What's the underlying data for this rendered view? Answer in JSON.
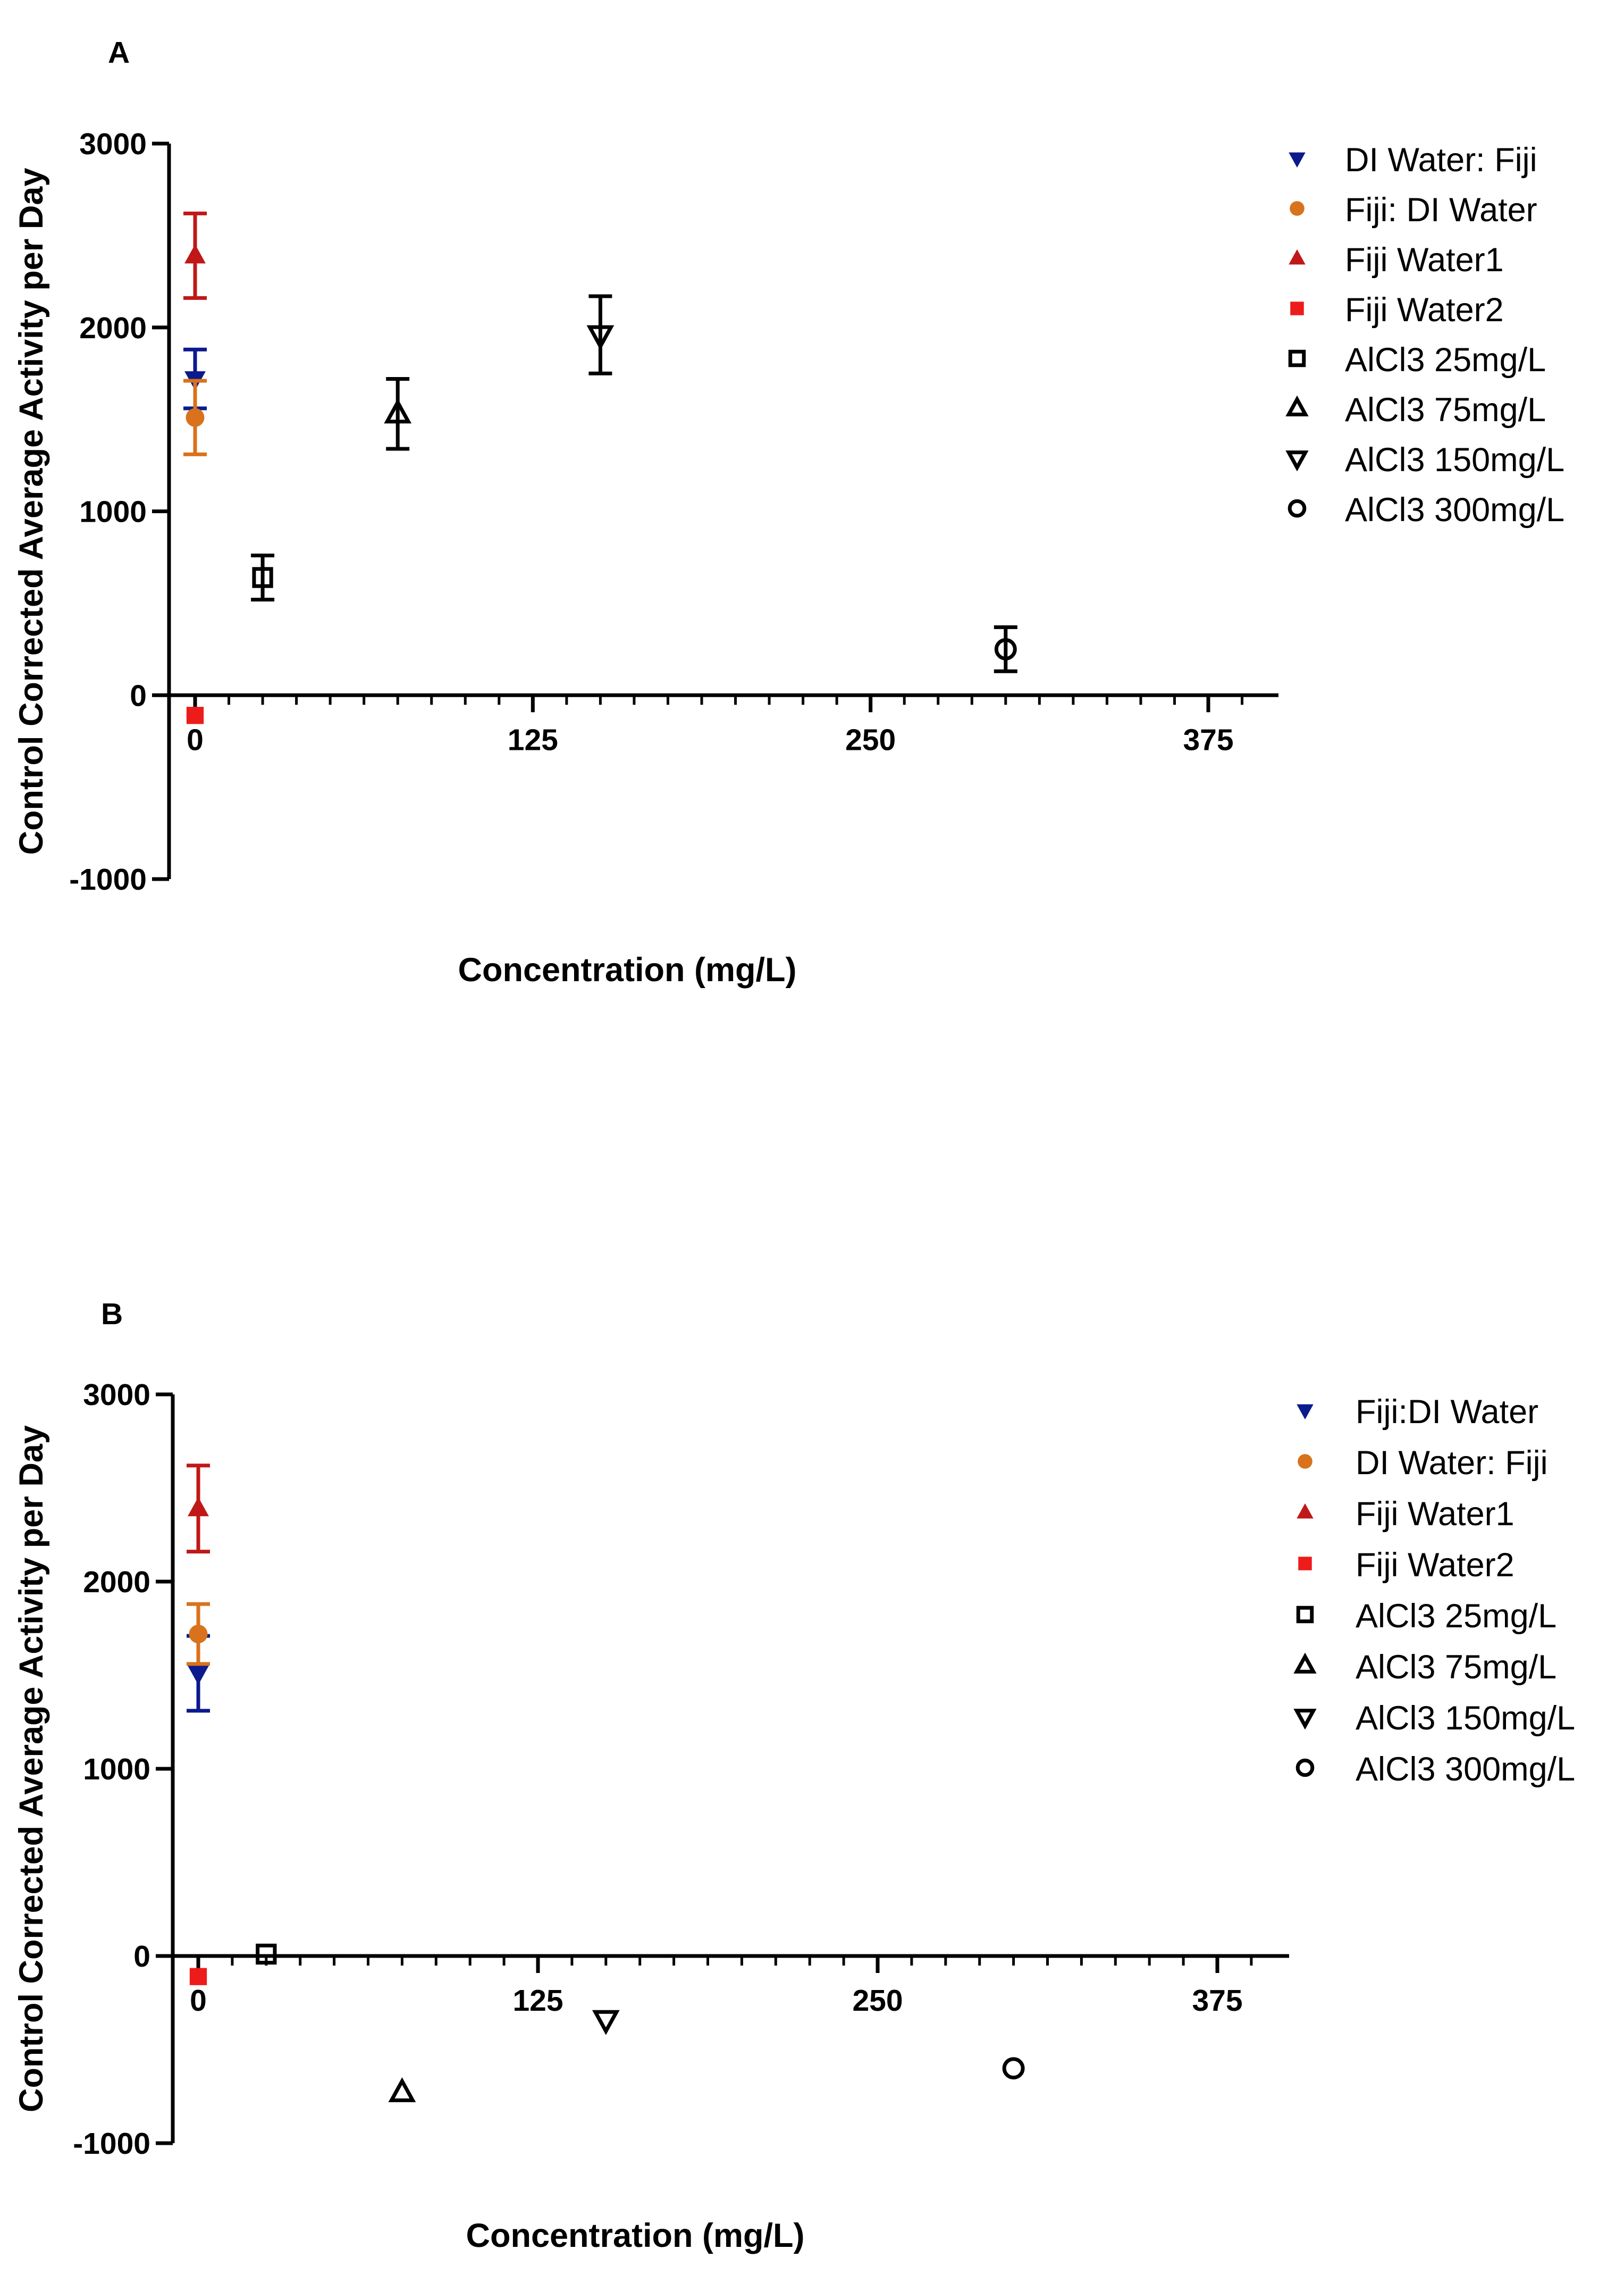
{
  "colors": {
    "navy": "#0b1a8c",
    "orange": "#d9721c",
    "darkred": "#c01818",
    "red": "#ee1b1b",
    "black": "#000000"
  },
  "chart_data": [
    {
      "type": "scatter",
      "panel_label": "A",
      "title": "",
      "xlabel": "Concentration (mg/L)",
      "ylabel": "Control Corrected Average Activity per Day",
      "xlim": [
        -7,
        400
      ],
      "ylim": [
        -1000,
        3000
      ],
      "xticks": [
        0,
        125,
        250,
        375
      ],
      "yticks": [
        -1000,
        0,
        1000,
        2000,
        3000
      ],
      "grid": false,
      "legend_position": "top-right",
      "series": [
        {
          "name": "DI Water: Fiji",
          "marker": "triangle-down",
          "fill": "filled",
          "color": "#0b1a8c",
          "x": 0,
          "y": 1720,
          "error": 160
        },
        {
          "name": "Fiji: DI Water",
          "marker": "circle",
          "fill": "filled",
          "color": "#d9721c",
          "x": 0,
          "y": 1510,
          "error": 200
        },
        {
          "name": "Fiji Water1",
          "marker": "triangle-up",
          "fill": "filled",
          "color": "#c01818",
          "x": 0,
          "y": 2390,
          "error": 230
        },
        {
          "name": "Fiji Water2",
          "marker": "square",
          "fill": "filled",
          "color": "#ee1b1b",
          "x": 0,
          "y": -110,
          "error": 0
        },
        {
          "name": "AlCl3 25mg/L",
          "marker": "square",
          "fill": "open",
          "color": "#000000",
          "x": 25,
          "y": 640,
          "error": 120
        },
        {
          "name": "AlCl3 75mg/L",
          "marker": "triangle-up",
          "fill": "open",
          "color": "#000000",
          "x": 75,
          "y": 1530,
          "error": 190
        },
        {
          "name": "AlCl3 150mg/L",
          "marker": "triangle-down",
          "fill": "open",
          "color": "#000000",
          "x": 150,
          "y": 1960,
          "error": 210
        },
        {
          "name": "AlCl3 300mg/L",
          "marker": "circle",
          "fill": "open",
          "color": "#000000",
          "x": 300,
          "y": 250,
          "error": 120
        }
      ]
    },
    {
      "type": "scatter",
      "panel_label": "B",
      "title": "",
      "xlabel": "Concentration (mg/L)",
      "ylabel": "Control Corrected Average Activity per Day",
      "xlim": [
        -7,
        400
      ],
      "ylim": [
        -1000,
        3000
      ],
      "xticks": [
        0,
        125,
        250,
        375
      ],
      "yticks": [
        -1000,
        0,
        1000,
        2000,
        3000
      ],
      "grid": false,
      "legend_position": "top-right",
      "series": [
        {
          "name": "Fiji:DI Water",
          "marker": "triangle-down",
          "fill": "filled",
          "color": "#0b1a8c",
          "x": 0,
          "y": 1510,
          "error": 200
        },
        {
          "name": "DI Water: Fiji",
          "marker": "circle",
          "fill": "filled",
          "color": "#d9721c",
          "x": 0,
          "y": 1720,
          "error": 160
        },
        {
          "name": "Fiji Water1",
          "marker": "triangle-up",
          "fill": "filled",
          "color": "#c01818",
          "x": 0,
          "y": 2390,
          "error": 230
        },
        {
          "name": "Fiji Water2",
          "marker": "square",
          "fill": "filled",
          "color": "#ee1b1b",
          "x": 0,
          "y": -110,
          "error": 0
        },
        {
          "name": "AlCl3 25mg/L",
          "marker": "square",
          "fill": "open",
          "color": "#000000",
          "x": 25,
          "y": 10,
          "error": 0
        },
        {
          "name": "AlCl3 75mg/L",
          "marker": "triangle-up",
          "fill": "open",
          "color": "#000000",
          "x": 75,
          "y": -730,
          "error": 0
        },
        {
          "name": "AlCl3 150mg/L",
          "marker": "triangle-down",
          "fill": "open",
          "color": "#000000",
          "x": 150,
          "y": -340,
          "error": 0
        },
        {
          "name": "AlCl3 300mg/L",
          "marker": "circle",
          "fill": "open",
          "color": "#000000",
          "x": 300,
          "y": -600,
          "error": 0
        }
      ]
    }
  ]
}
